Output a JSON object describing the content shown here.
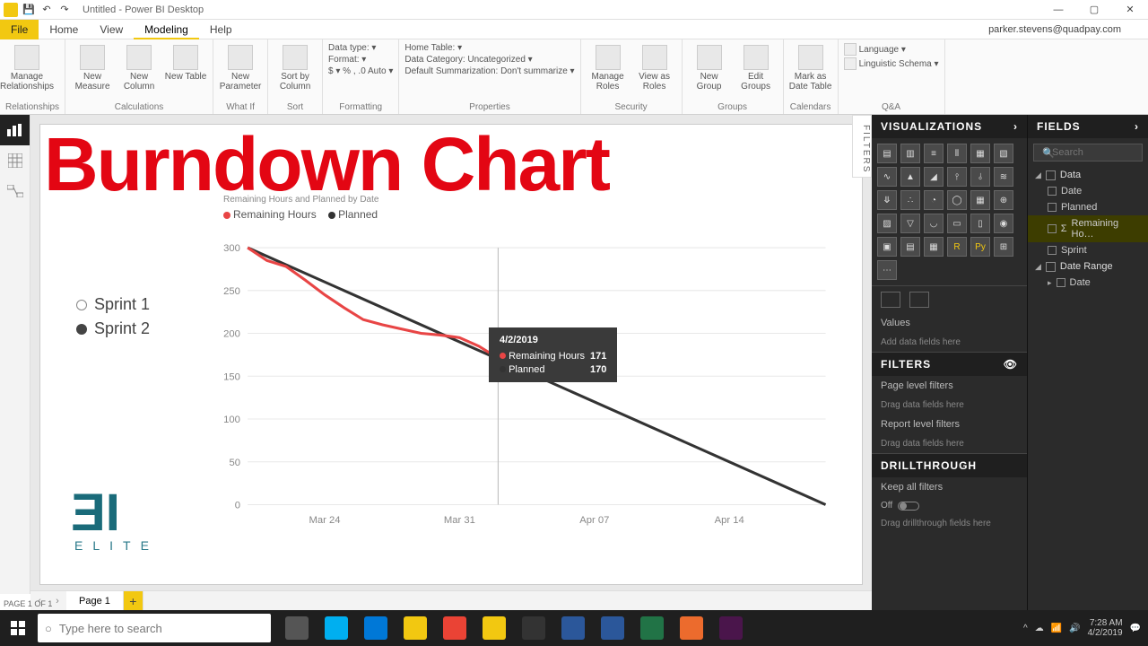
{
  "window": {
    "title": "Untitled - Power BI Desktop",
    "user_email": "parker.stevens@quadpay.com",
    "min": "—",
    "max": "▢",
    "close": "✕"
  },
  "ribbon_tabs": {
    "file": "File",
    "home": "Home",
    "view": "View",
    "modeling": "Modeling",
    "help": "Help"
  },
  "ribbon": {
    "relationships": {
      "label": "Relationships",
      "manage": "Manage\nRelationships"
    },
    "calculations": {
      "label": "Calculations",
      "new_measure": "New\nMeasure",
      "new_column": "New\nColumn",
      "new_table": "New\nTable"
    },
    "whatif": {
      "label": "What If",
      "new_param": "New\nParameter"
    },
    "sort": {
      "label": "Sort",
      "sort_by": "Sort by\nColumn"
    },
    "formatting": {
      "label": "Formatting",
      "data_type": "Data type: ▾",
      "format": "Format: ▾",
      "currency": "$ ▾  %  ,  .0  Auto ▾"
    },
    "properties": {
      "label": "Properties",
      "home_table": "Home Table: ▾",
      "data_category": "Data Category: Uncategorized ▾",
      "default_summ": "Default Summarization: Don't summarize ▾"
    },
    "security": {
      "label": "Security",
      "manage_roles": "Manage\nRoles",
      "view_as": "View as\nRoles"
    },
    "groups": {
      "label": "Groups",
      "new_group": "New\nGroup",
      "edit_groups": "Edit\nGroups"
    },
    "calendars": {
      "label": "Calendars",
      "mark_date": "Mark as\nDate Table"
    },
    "qa": {
      "label": "Q&A",
      "language": "Language ▾",
      "schema": "Linguistic Schema ▾"
    }
  },
  "overlay_title": "Burndown Chart",
  "slicer": {
    "opt1": "Sprint 1",
    "opt2": "Sprint 2"
  },
  "bielite": {
    "logo": "ƎI",
    "tag": "ELITE"
  },
  "chart": {
    "title": "Remaining Hours and Planned by Date",
    "legend": {
      "s1_label": "Remaining Hours",
      "s1_color": "#e84545",
      "s2_label": "Planned",
      "s2_color": "#333333"
    },
    "y_ticks": [
      0,
      50,
      100,
      150,
      200,
      250,
      300
    ],
    "x_ticks": [
      "Mar 24",
      "Mar 31",
      "Apr 07",
      "Apr 14"
    ],
    "planned": [
      [
        0,
        300
      ],
      [
        30,
        0
      ]
    ],
    "remaining": [
      [
        0,
        300
      ],
      [
        1,
        285
      ],
      [
        2,
        278
      ],
      [
        3,
        262
      ],
      [
        4,
        245
      ],
      [
        5,
        230
      ],
      [
        6,
        216
      ],
      [
        7,
        210
      ],
      [
        8,
        205
      ],
      [
        9,
        200
      ],
      [
        10,
        198
      ],
      [
        11,
        195
      ],
      [
        12,
        185
      ],
      [
        13,
        171
      ]
    ],
    "tooltip": {
      "date": "4/2/2019",
      "r1_label": "Remaining Hours",
      "r1_value": "171",
      "r1_color": "#e84545",
      "r2_label": "Planned",
      "r2_value": "170",
      "r2_color": "#333333"
    },
    "grid_color": "#e8e8e8",
    "cursor_day": 13
  },
  "filters_tab": "FILTERS",
  "viz_pane": {
    "title": "VISUALIZATIONS",
    "values_label": "Values",
    "values_placeholder": "Add data fields here",
    "filters_title": "FILTERS",
    "page_filters": "Page level filters",
    "drag_here": "Drag data fields here",
    "report_filters": "Report level filters",
    "drill_title": "DRILLTHROUGH",
    "keep_all": "Keep all filters",
    "off": "Off",
    "drill_placeholder": "Drag drillthrough fields here"
  },
  "fields_pane": {
    "title": "FIELDS",
    "search_placeholder": "Search",
    "table1": "Data",
    "f_date": "Date",
    "f_planned": "Planned",
    "f_remaining": "Remaining Ho…",
    "f_sprint": "Sprint",
    "table2": "Date Range",
    "f_date2": "Date"
  },
  "pages": {
    "page1": "Page 1",
    "count": "PAGE 1 OF 1"
  },
  "taskbar": {
    "search_placeholder": "Type here to search",
    "apps": [
      {
        "name": "task-view",
        "color": "#555"
      },
      {
        "name": "skype",
        "color": "#00aff0"
      },
      {
        "name": "edge",
        "color": "#0078d7"
      },
      {
        "name": "file-explorer",
        "color": "#f2c811"
      },
      {
        "name": "chrome",
        "color": "#ea4335"
      },
      {
        "name": "powerbi",
        "color": "#f2c811"
      },
      {
        "name": "obs",
        "color": "#333"
      },
      {
        "name": "snagit",
        "color": "#2b579a"
      },
      {
        "name": "word",
        "color": "#2b579a"
      },
      {
        "name": "excel",
        "color": "#217346"
      },
      {
        "name": "camtasia",
        "color": "#ec6b2d"
      },
      {
        "name": "slack",
        "color": "#4a154b"
      }
    ],
    "time": "7:28 AM",
    "date": "4/2/2019"
  }
}
